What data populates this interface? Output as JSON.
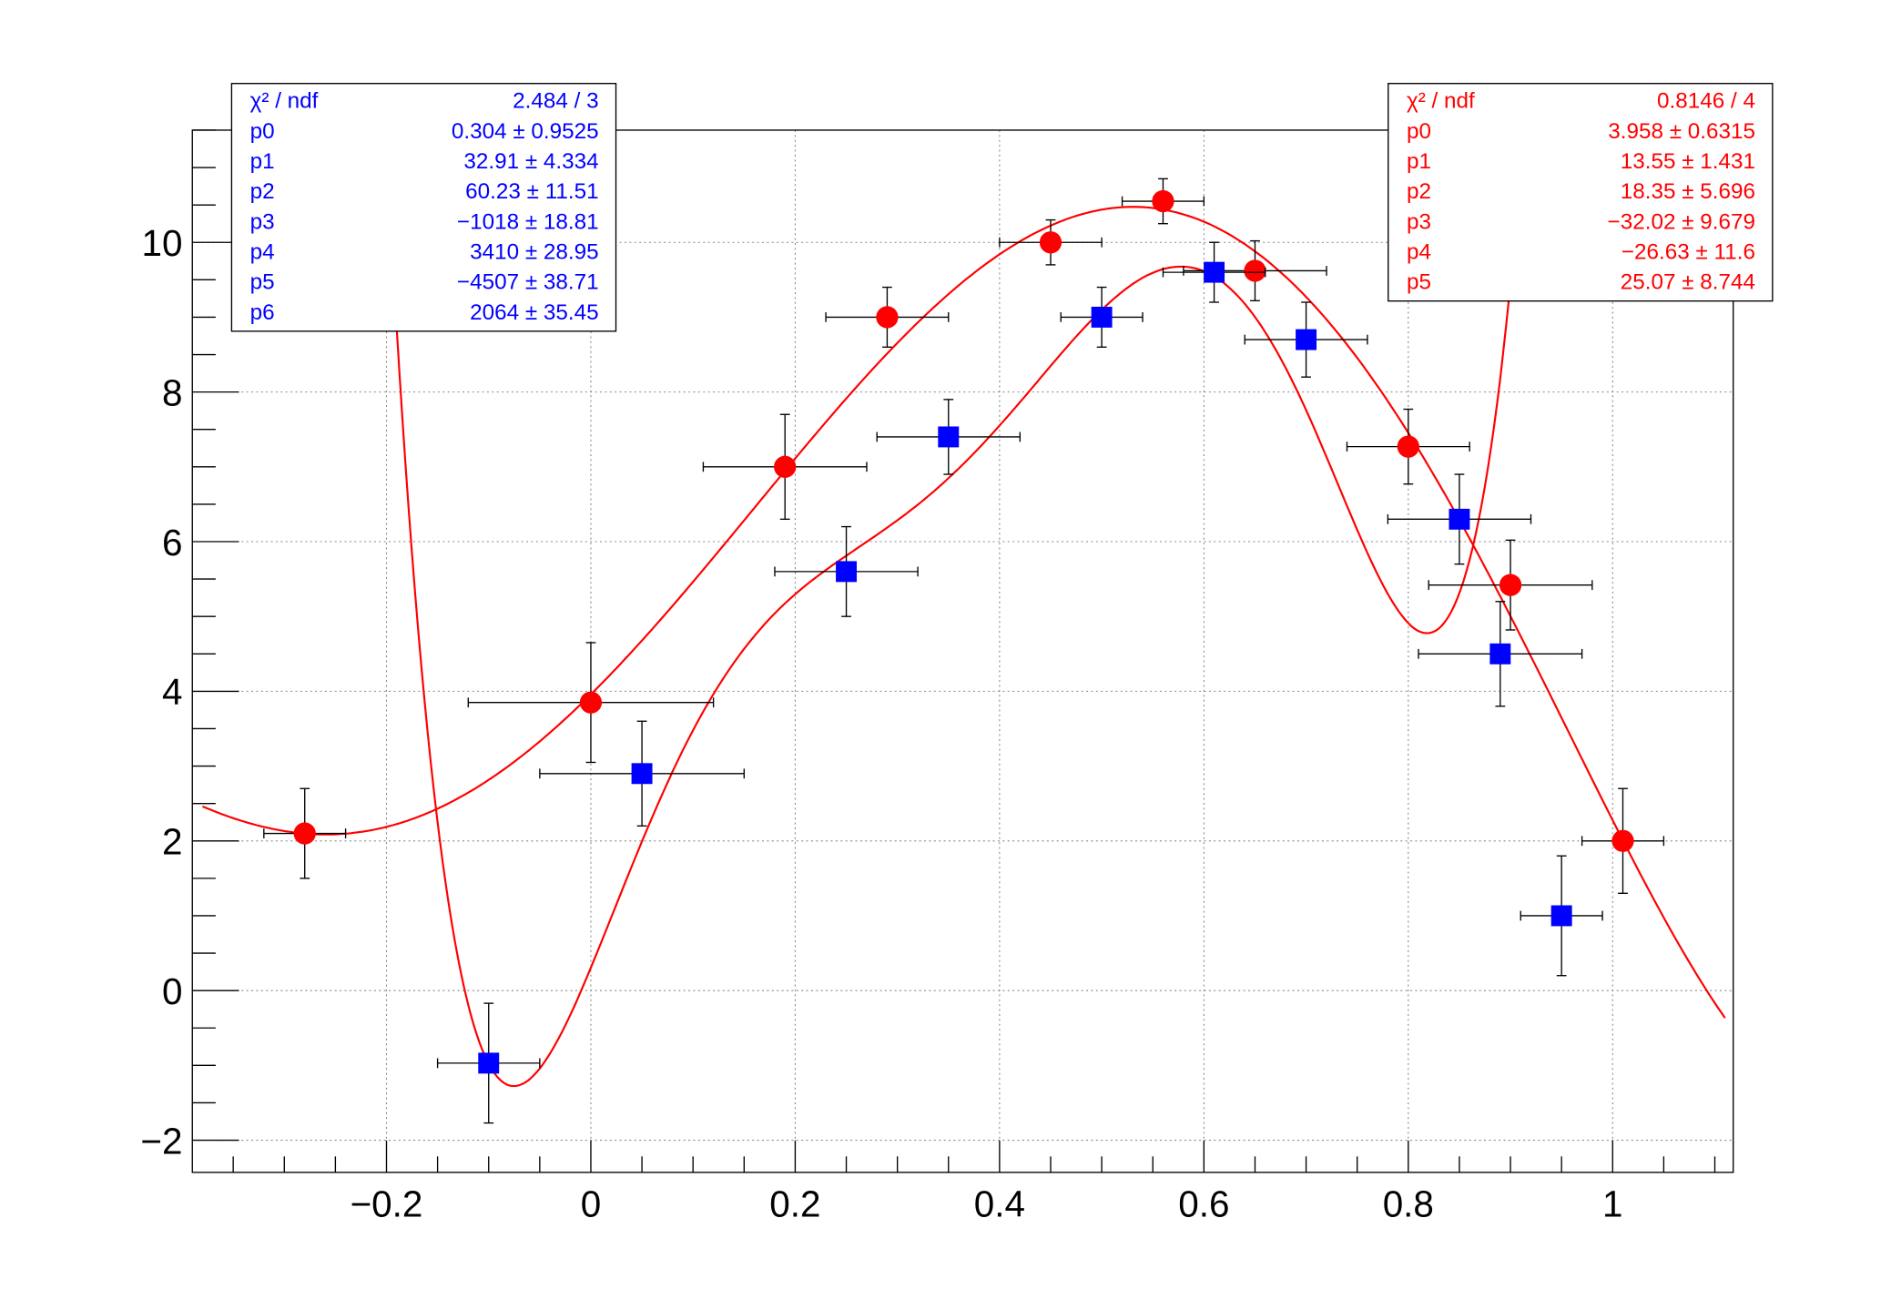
{
  "chart_data": {
    "type": "scatter",
    "title": "",
    "xlabel": "",
    "ylabel": "",
    "xlim": [
      -0.39,
      1.118
    ],
    "ylim": [
      -2.43,
      11.5
    ],
    "grid": true,
    "x_ticks": [
      "−0.2",
      "0",
      "0.2",
      "0.4",
      "0.6",
      "0.8",
      "1"
    ],
    "x_tick_values": [
      -0.2,
      0,
      0.2,
      0.4,
      0.6,
      0.8,
      1
    ],
    "y_ticks": [
      "−2",
      "0",
      "2",
      "4",
      "6",
      "8",
      "10"
    ],
    "y_tick_values": [
      -2,
      0,
      2,
      4,
      6,
      8,
      10
    ],
    "series": [
      {
        "marker": "circle",
        "color": "#ff0000",
        "points": [
          {
            "x": -0.28,
            "y": 2.1,
            "ex": 0.04,
            "ey": 0.6
          },
          {
            "x": 0.0,
            "y": 3.85,
            "ex": 0.12,
            "ey": 0.8
          },
          {
            "x": 0.19,
            "y": 7.0,
            "ex": 0.08,
            "ey": 0.7
          },
          {
            "x": 0.29,
            "y": 9.0,
            "ex": 0.06,
            "ey": 0.4
          },
          {
            "x": 0.45,
            "y": 10.0,
            "ex": 0.05,
            "ey": 0.3
          },
          {
            "x": 0.56,
            "y": 10.55,
            "ex": 0.04,
            "ey": 0.3
          },
          {
            "x": 0.65,
            "y": 9.62,
            "ex": 0.07,
            "ey": 0.4
          },
          {
            "x": 0.8,
            "y": 7.27,
            "ex": 0.06,
            "ey": 0.5
          },
          {
            "x": 0.9,
            "y": 5.42,
            "ex": 0.08,
            "ey": 0.6
          },
          {
            "x": 1.01,
            "y": 2.0,
            "ex": 0.04,
            "ey": 0.7
          }
        ],
        "fit": {
          "type": "pol5",
          "color": "#ff0000",
          "params": [
            3.958,
            13.55,
            18.35,
            -32.02,
            -26.63,
            25.07
          ],
          "range": [
            -0.38,
            1.11
          ]
        }
      },
      {
        "marker": "square",
        "color": "#0000ff",
        "points": [
          {
            "x": -0.1,
            "y": -0.97,
            "ex": 0.05,
            "ey": 0.8
          },
          {
            "x": 0.05,
            "y": 2.9,
            "ex": 0.1,
            "ey": 0.7
          },
          {
            "x": 0.25,
            "y": 5.6,
            "ex": 0.07,
            "ey": 0.6
          },
          {
            "x": 0.35,
            "y": 7.4,
            "ex": 0.07,
            "ey": 0.5
          },
          {
            "x": 0.5,
            "y": 9.0,
            "ex": 0.04,
            "ey": 0.4
          },
          {
            "x": 0.61,
            "y": 9.6,
            "ex": 0.05,
            "ey": 0.4
          },
          {
            "x": 0.7,
            "y": 8.7,
            "ex": 0.06,
            "ey": 0.5
          },
          {
            "x": 0.85,
            "y": 6.3,
            "ex": 0.07,
            "ey": 0.6
          },
          {
            "x": 0.89,
            "y": 4.5,
            "ex": 0.08,
            "ey": 0.7
          },
          {
            "x": 0.95,
            "y": 1.0,
            "ex": 0.04,
            "ey": 0.8
          }
        ],
        "fit": {
          "type": "pol6",
          "color": "#ff0000",
          "params": [
            0.304,
            32.91,
            60.23,
            -1018,
            3410,
            -4507,
            2064
          ],
          "range": [
            -0.25,
            0.95
          ]
        }
      }
    ],
    "stats_boxes": [
      {
        "color": "#0000ff",
        "position": "top-left",
        "rows": [
          {
            "label": "χ² / ndf",
            "value": "2.484 / 3"
          },
          {
            "label": "p0",
            "value": "0.304 ± 0.9525"
          },
          {
            "label": "p1",
            "value": "32.91 ± 4.334"
          },
          {
            "label": "p2",
            "value": "60.23 ± 11.51"
          },
          {
            "label": "p3",
            "value": "−1018 ± 18.81"
          },
          {
            "label": "p4",
            "value": "3410 ± 28.95"
          },
          {
            "label": "p5",
            "value": "−4507 ± 38.71"
          },
          {
            "label": "p6",
            "value": "2064 ± 35.45"
          }
        ]
      },
      {
        "color": "#ff0000",
        "position": "top-right",
        "rows": [
          {
            "label": "χ² / ndf",
            "value": "0.8146 / 4"
          },
          {
            "label": "p0",
            "value": "3.958 ± 0.6315"
          },
          {
            "label": "p1",
            "value": "13.55 ± 1.431"
          },
          {
            "label": "p2",
            "value": "18.35 ± 5.696"
          },
          {
            "label": "p3",
            "value": "−32.02 ± 9.679"
          },
          {
            "label": "p4",
            "value": "−26.63 ±  11.6"
          },
          {
            "label": "p5",
            "value": "25.07 ± 8.744"
          }
        ]
      }
    ]
  }
}
